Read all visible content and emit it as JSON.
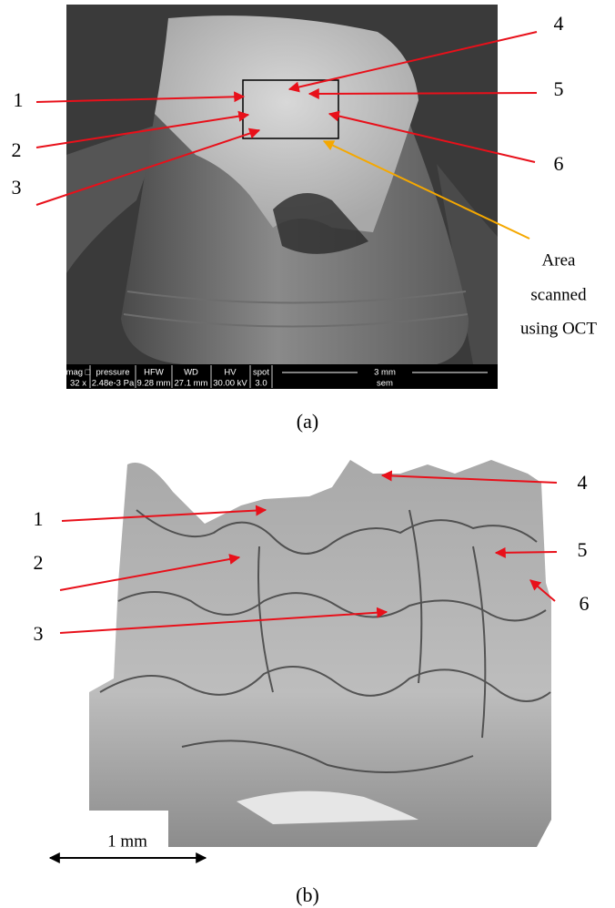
{
  "panel_a": {
    "labels": [
      "1",
      "2",
      "3",
      "4",
      "5",
      "6"
    ],
    "annotation": [
      "Area",
      "scanned",
      "using OCT"
    ],
    "databar": {
      "headers": [
        "mag □",
        "pressure",
        "HFW",
        "WD",
        "HV",
        "spot",
        "3 mm"
      ],
      "values": [
        "32 x",
        "2.48e-3 Pa",
        "9.28 mm",
        "27.1 mm",
        "30.00 kV",
        "3.0",
        "sem"
      ]
    },
    "caption": "(a)"
  },
  "panel_b": {
    "labels": [
      "1",
      "2",
      "3",
      "4",
      "5",
      "6"
    ],
    "scale": "1 mm",
    "caption": "(b)"
  }
}
